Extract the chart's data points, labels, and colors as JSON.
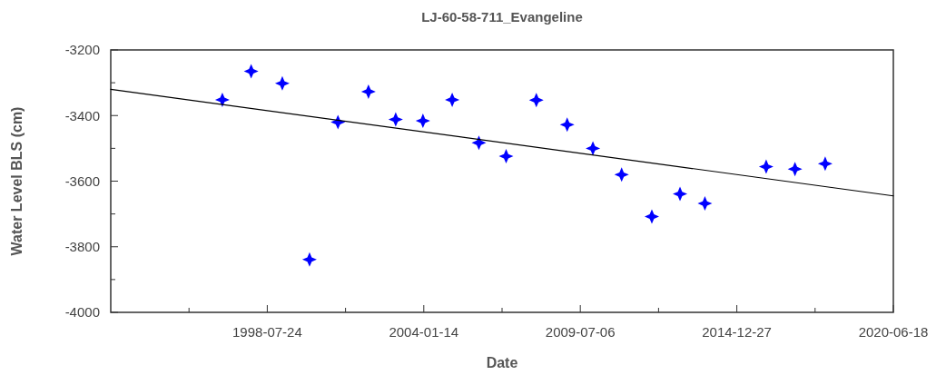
{
  "chart_data": {
    "type": "scatter",
    "title": "LJ-60-58-711_Evangeline",
    "xlabel": "Date",
    "ylabel": "Water Level BLS (cm)",
    "x": [
      "1996-12-27",
      "1997-12-30",
      "1999-02-01",
      "2000-01-15",
      "2001-01-12",
      "2002-02-06",
      "2003-01-20",
      "2004-01-03",
      "2005-01-11",
      "2005-12-18",
      "2006-12-01",
      "2007-12-22",
      "2009-01-19",
      "2009-12-14",
      "2010-12-16",
      "2012-01-06",
      "2012-12-31",
      "2013-11-14",
      "2016-01-06",
      "2017-01-08",
      "2018-01-29"
    ],
    "series": [
      {
        "color": "#0000ff",
        "marker": "star",
        "values": [
          -3352,
          -3265,
          -3302,
          -3839,
          -3420,
          -3327,
          -3412,
          -3416,
          -3352,
          -3483,
          -3524,
          -3353,
          -3428,
          -3500,
          -3580,
          -3708,
          -3639,
          -3668,
          -3556,
          -3563,
          -3547
        ]
      },
      {
        "type": "line",
        "color": "#000000",
        "marker": "none",
        "line_style": "solid",
        "x": [
          "1993-01-31",
          "2020-06-18"
        ],
        "values": [
          -3320,
          -3645
        ]
      }
    ],
    "xlim": [
      "1993-01-31",
      "2020-06-18"
    ],
    "xticks": [
      {
        "value": "1995-10-28",
        "label": null
      },
      "1998-07-24",
      {
        "value": "2001-04-19",
        "label": null
      },
      "2004-01-14",
      {
        "value": "2006-10-10",
        "label": null
      },
      "2009-07-06",
      {
        "value": "2012-04-01",
        "label": null
      },
      "2014-12-27",
      {
        "value": "2017-09-22",
        "label": null
      },
      "2020-06-18"
    ],
    "ylim": [
      -4000,
      -3200
    ],
    "yticks": [
      -4000,
      {
        "value": -3900,
        "label": null
      },
      -3800,
      {
        "value": -3700,
        "label": null
      },
      -3600,
      {
        "value": -3500,
        "label": null
      },
      -3400,
      {
        "value": -3300,
        "label": null
      },
      -3200
    ],
    "grid": false
  }
}
